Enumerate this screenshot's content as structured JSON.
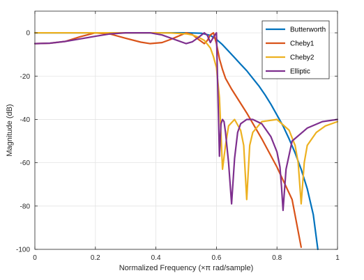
{
  "chart_data": {
    "type": "line",
    "title": "",
    "xlabel": "Normalized Frequency  (×π rad/sample)",
    "ylabel": "Magnitude (dB)",
    "xlim": [
      0,
      1
    ],
    "ylim": [
      -100,
      10
    ],
    "xticks": [
      0,
      0.2,
      0.4,
      0.6,
      0.8,
      1
    ],
    "xtick_labels": [
      "0",
      "0.2",
      "0.4",
      "0.6",
      "0.8",
      "1"
    ],
    "yticks": [
      0,
      -20,
      -40,
      -60,
      -80,
      -100
    ],
    "ytick_labels": [
      "0",
      "-20",
      "-40",
      "-60",
      "-80",
      "-100"
    ],
    "grid": true,
    "legend_position": "top-right",
    "series": [
      {
        "name": "Butterworth",
        "color": "#0072BD",
        "x": [
          0,
          0.1,
          0.2,
          0.3,
          0.4,
          0.5,
          0.55,
          0.58,
          0.6,
          0.62,
          0.64,
          0.66,
          0.68,
          0.7,
          0.72,
          0.74,
          0.76,
          0.78,
          0.8,
          0.82,
          0.84,
          0.86,
          0.88,
          0.9,
          0.92,
          0.935
        ],
        "y": [
          0,
          0,
          0,
          0,
          0,
          0,
          -0.2,
          -1.2,
          -3,
          -5.5,
          -8.5,
          -11.5,
          -14.5,
          -17.5,
          -21,
          -24.5,
          -28.5,
          -33,
          -38,
          -43,
          -49,
          -55.5,
          -63,
          -72,
          -84,
          -100
        ]
      },
      {
        "name": "Cheby1",
        "color": "#D95319",
        "x": [
          0,
          0.05,
          0.1,
          0.15,
          0.2,
          0.25,
          0.3,
          0.35,
          0.38,
          0.42,
          0.45,
          0.5,
          0.52,
          0.54,
          0.56,
          0.57,
          0.58,
          0.59,
          0.6,
          0.61,
          0.62,
          0.63,
          0.65,
          0.7,
          0.75,
          0.8,
          0.85,
          0.88
        ],
        "y": [
          -5,
          -4.8,
          -4.0,
          -1.8,
          0,
          -0.6,
          -2.5,
          -4.3,
          -5,
          -4.5,
          -3,
          0,
          -0.8,
          -3,
          -5,
          -3.5,
          -1,
          0,
          -5,
          -12,
          -17,
          -21,
          -26,
          -37,
          -49,
          -62,
          -77,
          -99
        ]
      },
      {
        "name": "Cheby2",
        "color": "#EDB120",
        "x": [
          0,
          0.1,
          0.2,
          0.3,
          0.4,
          0.45,
          0.5,
          0.52,
          0.54,
          0.56,
          0.58,
          0.59,
          0.6,
          0.61,
          0.62,
          0.63,
          0.64,
          0.66,
          0.68,
          0.69,
          0.7,
          0.71,
          0.72,
          0.75,
          0.8,
          0.84,
          0.86,
          0.87,
          0.88,
          0.89,
          0.9,
          0.93,
          0.96,
          1.0
        ],
        "y": [
          0,
          0,
          0,
          0,
          0,
          -0.1,
          -0.5,
          -1,
          -2,
          -3.5,
          -7,
          -11,
          -16,
          -30,
          -63,
          -52,
          -43,
          -40,
          -45,
          -52,
          -77,
          -52,
          -46,
          -41,
          -40,
          -45,
          -52,
          -60,
          -79,
          -60,
          -52,
          -46,
          -43,
          -41
        ]
      },
      {
        "name": "Elliptic",
        "color": "#7E2F8E",
        "x": [
          0,
          0.05,
          0.1,
          0.15,
          0.2,
          0.25,
          0.3,
          0.34,
          0.38,
          0.42,
          0.46,
          0.5,
          0.52,
          0.54,
          0.56,
          0.57,
          0.58,
          0.59,
          0.6,
          0.605,
          0.61,
          0.615,
          0.62,
          0.625,
          0.63,
          0.64,
          0.65,
          0.66,
          0.67,
          0.68,
          0.7,
          0.72,
          0.75,
          0.78,
          0.8,
          0.81,
          0.815,
          0.82,
          0.83,
          0.85,
          0.9,
          0.95,
          1.0
        ],
        "y": [
          -5,
          -4.8,
          -4.0,
          -2.8,
          -1.6,
          -0.5,
          0,
          0,
          0,
          -1,
          -3,
          -5,
          -4.2,
          -2.2,
          0,
          -1.2,
          -4.5,
          -2,
          0,
          -30,
          -57,
          -42,
          -40,
          -41,
          -46,
          -60,
          -79,
          -58,
          -46,
          -42,
          -40,
          -40,
          -42,
          -48,
          -55,
          -62,
          -71,
          -82,
          -63,
          -50,
          -44,
          -41,
          -40
        ]
      }
    ]
  }
}
